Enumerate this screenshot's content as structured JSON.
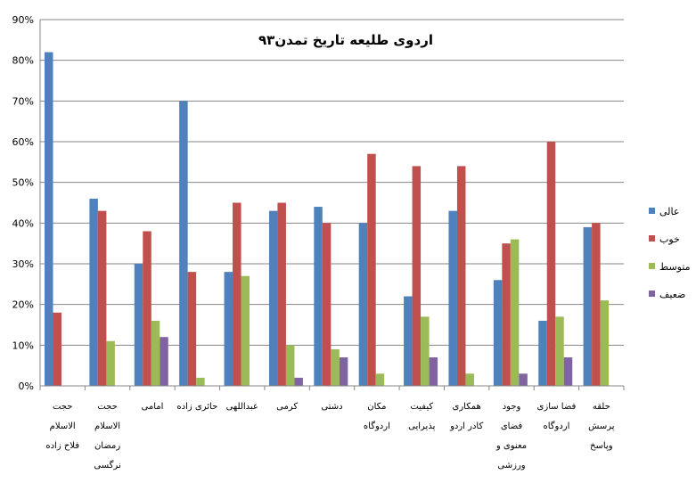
{
  "chart_data": {
    "type": "bar",
    "title": "اردوی طلیعه تاریخ تمدن۹۳",
    "xlabel": "",
    "ylabel": "",
    "ylim": [
      0,
      90
    ],
    "y_ticks": [
      "0%",
      "10%",
      "20%",
      "30%",
      "40%",
      "50%",
      "60%",
      "70%",
      "80%",
      "90%"
    ],
    "grid": true,
    "legend_position": "right",
    "categories": [
      [
        "حجت",
        "الاسلام",
        "فلاح زاده"
      ],
      [
        "حجت",
        "الاسلام",
        "رمضان",
        "نرگسی"
      ],
      [
        "امامی"
      ],
      [
        "حائری زاده"
      ],
      [
        "عبداللهی"
      ],
      [
        "کرمی"
      ],
      [
        "دشتی"
      ],
      [
        "مکان",
        "اردوگاه"
      ],
      [
        "کیفیت",
        "پذیرایی"
      ],
      [
        "همکاری",
        "کادر اردو"
      ],
      [
        "وجود",
        "فضای",
        "معنوی و",
        "ورزشی"
      ],
      [
        "فضا سازی",
        "اردوگاه"
      ],
      [
        "حلقه",
        "پرسش",
        "وپاسخ"
      ]
    ],
    "series": [
      {
        "name": "عالی",
        "color": "#4F81BD",
        "values": [
          82,
          46,
          30,
          70,
          28,
          43,
          44,
          40,
          22,
          43,
          26,
          16,
          39
        ]
      },
      {
        "name": "خوب",
        "color": "#C0504D",
        "values": [
          18,
          43,
          38,
          28,
          45,
          45,
          40,
          57,
          54,
          54,
          35,
          60,
          40
        ]
      },
      {
        "name": "متوسط",
        "color": "#9BBB59",
        "values": [
          0,
          11,
          16,
          2,
          27,
          10,
          9,
          3,
          17,
          3,
          36,
          17,
          21
        ]
      },
      {
        "name": "ضعیف",
        "color": "#8064A2",
        "values": [
          0,
          0,
          12,
          0,
          0,
          2,
          7,
          0,
          7,
          0,
          3,
          7,
          0
        ]
      }
    ]
  }
}
